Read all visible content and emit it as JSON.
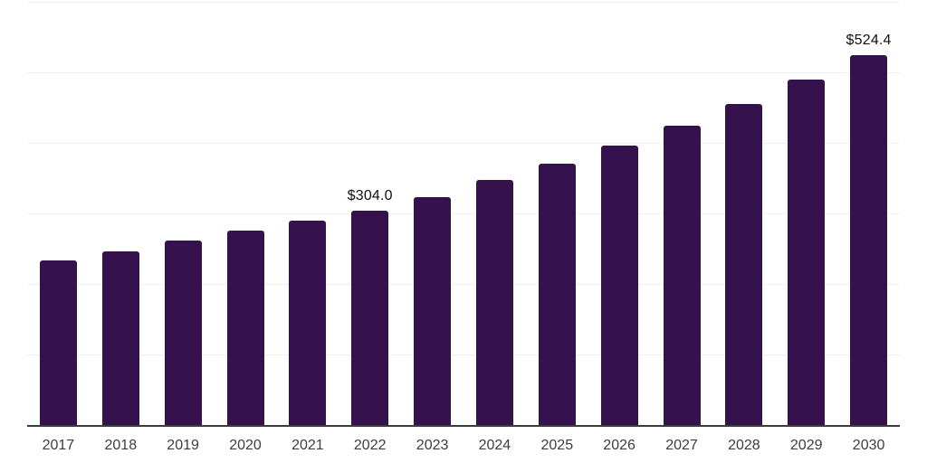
{
  "chart_data": {
    "type": "bar",
    "title": "",
    "xlabel": "",
    "ylabel": "",
    "legend": "none",
    "grid": "on",
    "categories": [
      "2017",
      "2018",
      "2019",
      "2020",
      "2021",
      "2022",
      "2023",
      "2024",
      "2025",
      "2026",
      "2027",
      "2028",
      "2029",
      "2030"
    ],
    "values": [
      233.4,
      246.1,
      261.5,
      275.6,
      289.7,
      304.0,
      323.1,
      347.4,
      370.5,
      396.2,
      424.4,
      455.1,
      489.7,
      524.4
    ],
    "annotations": [
      {
        "category": "2022",
        "text": "$304.0"
      },
      {
        "category": "2030",
        "text": "$524.4"
      }
    ],
    "ylim": [
      0,
      600
    ],
    "grid_step": 100,
    "colors": {
      "bar": "#35114D",
      "gridline": "#F0F0F1",
      "axis_line": "#3C3C3C",
      "tick_label": "#3D3D3D",
      "data_label": "#111111",
      "background": "#FFFFFF"
    }
  }
}
